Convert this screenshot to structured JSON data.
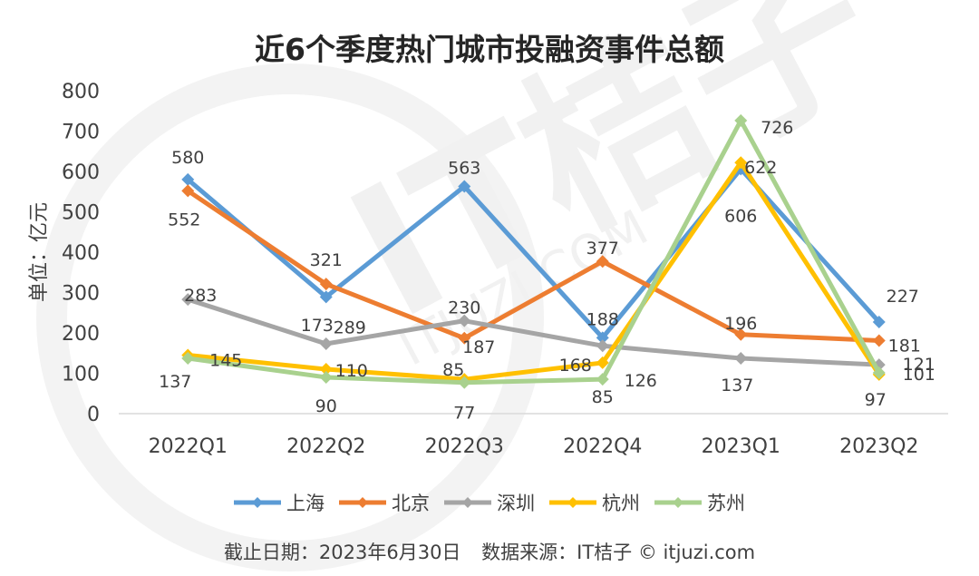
{
  "chart_data": {
    "type": "line",
    "title": "近6个季度热门城市投融资事件总额",
    "xlabel": "",
    "ylabel": "单位：亿元",
    "ylim": [
      0,
      800
    ],
    "yticks": [
      0,
      100,
      200,
      300,
      400,
      500,
      600,
      700,
      800
    ],
    "categories": [
      "2022Q1",
      "2022Q2",
      "2022Q3",
      "2022Q4",
      "2023Q1",
      "2023Q2"
    ],
    "legend_position": "bottom",
    "grid": true,
    "series": [
      {
        "name": "上海",
        "color": "#5B9BD5",
        "values": [
          580,
          289,
          563,
          188,
          606,
          227
        ]
      },
      {
        "name": "北京",
        "color": "#ED7D31",
        "values": [
          552,
          321,
          187,
          377,
          196,
          181
        ]
      },
      {
        "name": "深圳",
        "color": "#A5A5A5",
        "values": [
          283,
          173,
          230,
          168,
          137,
          121
        ]
      },
      {
        "name": "杭州",
        "color": "#FFC000",
        "values": [
          145,
          110,
          85,
          126,
          622,
          97
        ]
      },
      {
        "name": "苏州",
        "color": "#A9D18E",
        "values": [
          137,
          90,
          77,
          85,
          726,
          101
        ]
      }
    ]
  },
  "footer": {
    "date_text": "截止日期：2023年6月30日",
    "source_text": "数据来源：IT桔子 © itjuzi.com"
  },
  "watermark": {
    "brand": "IT桔子",
    "site": "ITJUZI.COM"
  }
}
